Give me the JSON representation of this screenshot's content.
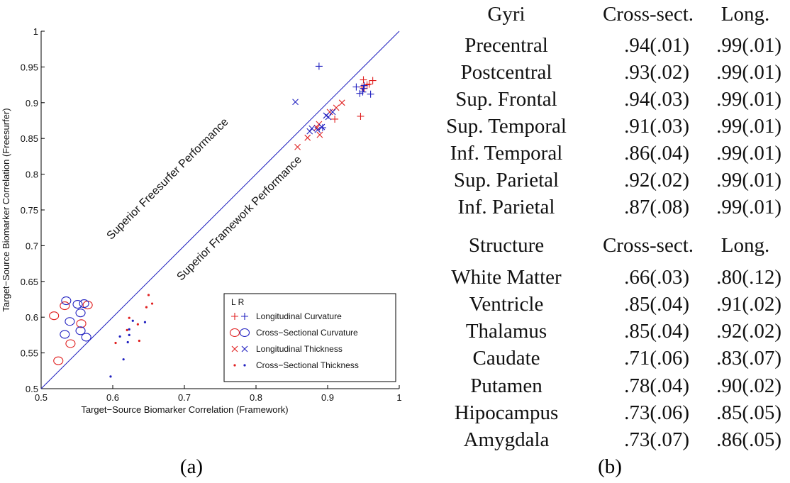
{
  "figure": {
    "panel_a_caption": "(a)",
    "panel_b_caption": "(b)"
  },
  "chart_data": [
    {
      "type": "scatter",
      "title": "",
      "xlabel": "Target−Source Biomarker Correlation (Framework)",
      "ylabel": "Target−Source Biomarker Correlation (Freesurfer)",
      "xlim": [
        0.5,
        1
      ],
      "ylim": [
        0.5,
        1
      ],
      "xticks": [
        "0.5",
        "0.6",
        "0.7",
        "0.8",
        "0.9",
        "1"
      ],
      "yticks": [
        "0.5",
        "0.55",
        "0.6",
        "0.65",
        "0.7",
        "0.75",
        "0.8",
        "0.85",
        "0.9",
        "0.95",
        "1"
      ],
      "grid": false,
      "reference_line": {
        "from": [
          0.5,
          0.5
        ],
        "to": [
          1,
          1
        ],
        "color": "#1f1fbf"
      },
      "annotations": [
        {
          "text": "Superior Freesurfer Performance",
          "x": 0.68,
          "y": 0.79,
          "rotation": -45
        },
        {
          "text": "Superior Framework Performance",
          "x": 0.78,
          "y": 0.735,
          "rotation": -45
        }
      ],
      "legend": {
        "position": "lower right",
        "header": "L R",
        "entries": [
          {
            "label": "Longitudinal Curvature",
            "marker": "+"
          },
          {
            "label": "Cross−Sectional Curvature",
            "marker": "o"
          },
          {
            "label": "Longitudinal Thickness",
            "marker": "x"
          },
          {
            "label": "Cross−Sectional Thickness",
            "marker": "."
          }
        ]
      },
      "colors": {
        "L": "#e02020",
        "R": "#2020c0"
      },
      "series": [
        {
          "name": "Longitudinal Curvature (L)",
          "hemisphere": "L",
          "marker": "+",
          "color": "#e02020",
          "points": [
            [
              0.95,
              0.932
            ],
            [
              0.963,
              0.931
            ],
            [
              0.958,
              0.926
            ],
            [
              0.951,
              0.92
            ],
            [
              0.955,
              0.925
            ],
            [
              0.948,
              0.922
            ],
            [
              0.946,
              0.881
            ],
            [
              0.91,
              0.877
            ]
          ]
        },
        {
          "name": "Longitudinal Curvature (R)",
          "hemisphere": "R",
          "marker": "+",
          "color": "#2020c0",
          "points": [
            [
              0.888,
              0.951
            ],
            [
              0.94,
              0.922
            ],
            [
              0.951,
              0.924
            ],
            [
              0.95,
              0.92
            ],
            [
              0.945,
              0.913
            ],
            [
              0.949,
              0.915
            ],
            [
              0.96,
              0.912
            ],
            [
              0.893,
              0.865
            ]
          ]
        },
        {
          "name": "Cross-Sectional Curvature (L)",
          "hemisphere": "L",
          "marker": "o",
          "color": "#e02020",
          "points": [
            [
              0.518,
              0.602
            ],
            [
              0.533,
              0.616
            ],
            [
              0.565,
              0.617
            ],
            [
              0.556,
              0.591
            ],
            [
              0.541,
              0.563
            ],
            [
              0.524,
              0.539
            ]
          ]
        },
        {
          "name": "Cross-Sectional Curvature (R)",
          "hemisphere": "R",
          "marker": "o",
          "color": "#2020c0",
          "points": [
            [
              0.535,
              0.623
            ],
            [
              0.551,
              0.618
            ],
            [
              0.56,
              0.619
            ],
            [
              0.555,
              0.606
            ],
            [
              0.54,
              0.594
            ],
            [
              0.555,
              0.581
            ],
            [
              0.533,
              0.576
            ],
            [
              0.563,
              0.572
            ]
          ]
        },
        {
          "name": "Longitudinal Thickness (L)",
          "hemisphere": "L",
          "marker": "x",
          "color": "#e02020",
          "points": [
            [
              0.92,
              0.9
            ],
            [
              0.912,
              0.893
            ],
            [
              0.903,
              0.887
            ],
            [
              0.888,
              0.87
            ],
            [
              0.885,
              0.865
            ],
            [
              0.872,
              0.851
            ],
            [
              0.889,
              0.855
            ],
            [
              0.858,
              0.838
            ]
          ]
        },
        {
          "name": "Longitudinal Thickness (R)",
          "hemisphere": "R",
          "marker": "x",
          "color": "#2020c0",
          "points": [
            [
              0.855,
              0.901
            ],
            [
              0.898,
              0.882
            ],
            [
              0.901,
              0.88
            ],
            [
              0.907,
              0.887
            ],
            [
              0.875,
              0.86
            ],
            [
              0.878,
              0.864
            ],
            [
              0.886,
              0.862
            ],
            [
              0.892,
              0.866
            ]
          ]
        },
        {
          "name": "Cross-Sectional Thickness (L)",
          "hemisphere": "L",
          "marker": ".",
          "color": "#e02020",
          "points": [
            [
              0.65,
              0.631
            ],
            [
              0.655,
              0.619
            ],
            [
              0.647,
              0.614
            ],
            [
              0.623,
              0.599
            ],
            [
              0.635,
              0.59
            ],
            [
              0.62,
              0.582
            ],
            [
              0.604,
              0.564
            ],
            [
              0.637,
              0.567
            ]
          ]
        },
        {
          "name": "Cross-Sectional Thickness (R)",
          "hemisphere": "R",
          "marker": ".",
          "color": "#2020c0",
          "points": [
            [
              0.628,
              0.595
            ],
            [
              0.645,
              0.593
            ],
            [
              0.623,
              0.583
            ],
            [
              0.623,
              0.575
            ],
            [
              0.61,
              0.573
            ],
            [
              0.621,
              0.565
            ],
            [
              0.615,
              0.541
            ],
            [
              0.597,
              0.517
            ]
          ]
        }
      ]
    },
    {
      "type": "table",
      "sections": [
        {
          "header": [
            "Gyri",
            "Cross-sect.",
            "Long."
          ],
          "rows": [
            [
              "Precentral",
              ".94(.01)",
              ".99(.01)"
            ],
            [
              "Postcentral",
              ".93(.02)",
              ".99(.01)"
            ],
            [
              "Sup. Frontal",
              ".94(.03)",
              ".99(.01)"
            ],
            [
              "Sup. Temporal",
              ".91(.03)",
              ".99(.01)"
            ],
            [
              "Inf. Temporal",
              ".86(.04)",
              ".99(.01)"
            ],
            [
              "Sup. Parietal",
              ".92(.02)",
              ".99(.01)"
            ],
            [
              "Inf. Parietal",
              ".87(.08)",
              ".99(.01)"
            ]
          ]
        },
        {
          "header": [
            "Structure",
            "Cross-sect.",
            "Long."
          ],
          "rows": [
            [
              "White Matter",
              ".66(.03)",
              ".80(.12)"
            ],
            [
              "Ventricle",
              ".85(.04)",
              ".91(.02)"
            ],
            [
              "Thalamus",
              ".85(.04)",
              ".92(.02)"
            ],
            [
              "Caudate",
              ".71(.06)",
              ".83(.07)"
            ],
            [
              "Putamen",
              ".78(.04)",
              ".90(.02)"
            ],
            [
              "Hipocampus",
              ".73(.06)",
              ".85(.05)"
            ],
            [
              "Amygdala",
              ".73(.07)",
              ".86(.05)"
            ]
          ]
        }
      ]
    }
  ]
}
